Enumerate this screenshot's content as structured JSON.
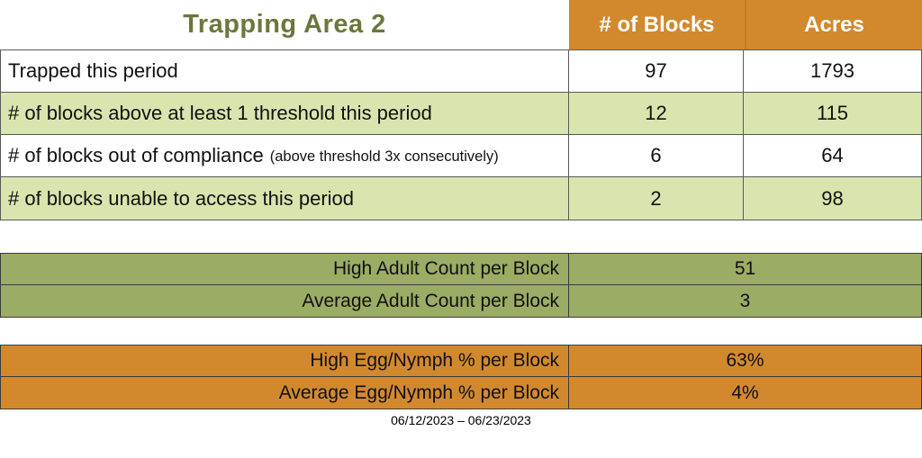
{
  "page": {
    "title": "Trapping Area 2",
    "date_range": "06/12/2023 – 06/23/2023"
  },
  "header": {
    "columns": [
      {
        "label": "# of Blocks"
      },
      {
        "label": "Acres"
      }
    ]
  },
  "main_table": {
    "rows": [
      {
        "label": "Trapped this period",
        "blocks": "97",
        "acres": "1793"
      },
      {
        "label": "# of blocks above at least 1 threshold this period",
        "blocks": "12",
        "acres": "115"
      },
      {
        "label": "# of blocks out of compliance",
        "note": "(above threshold 3x consecutively)",
        "blocks": "6",
        "acres": "64"
      },
      {
        "label": "# of blocks unable to access this period",
        "blocks": "2",
        "acres": "98"
      }
    ]
  },
  "adult_counts": {
    "rows": [
      {
        "label": "High Adult Count per Block",
        "value": "51"
      },
      {
        "label": "Average Adult Count per Block",
        "value": "3"
      }
    ]
  },
  "egg_nymph": {
    "rows": [
      {
        "label": "High Egg/Nymph % per Block",
        "value": "63%"
      },
      {
        "label": "Average Egg/Nymph % per Block",
        "value": "4%"
      }
    ]
  },
  "colors": {
    "header_orange": "#D2892E",
    "row_light_green": "#D9E5AF",
    "adult_olive": "#9BAC64",
    "title_green": "#6A783C"
  }
}
